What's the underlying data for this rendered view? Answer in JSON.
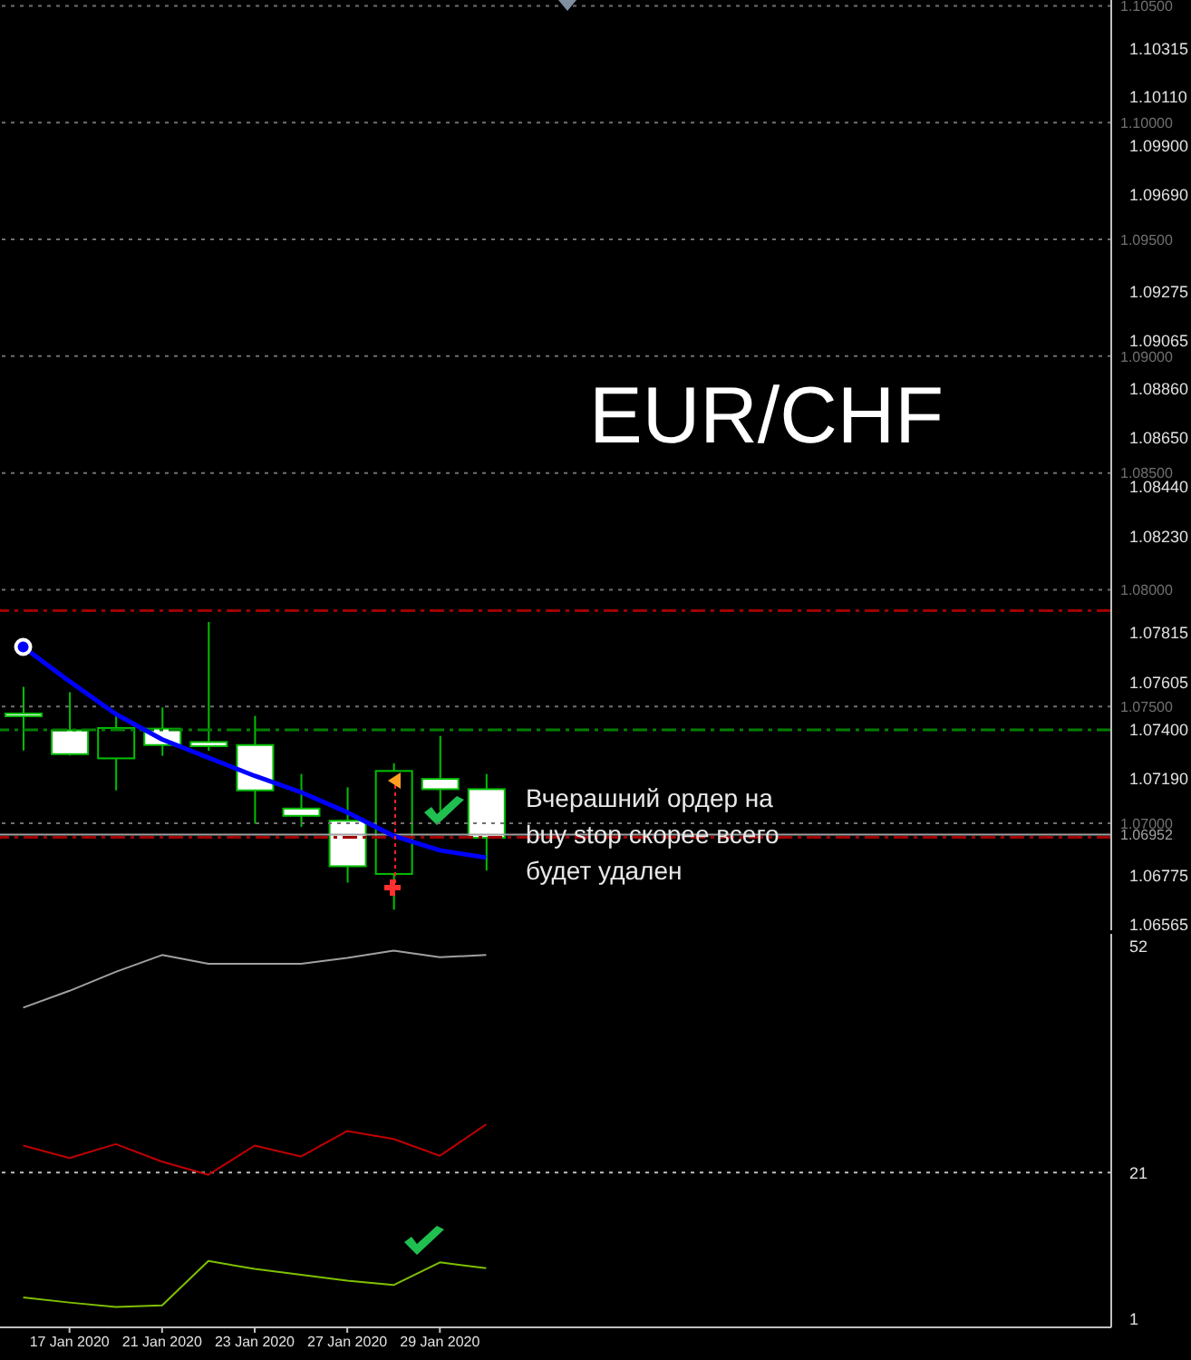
{
  "chart_data": [
    {
      "type": "candlestick",
      "title": "EUR/CHF",
      "categories": [
        null,
        null,
        null,
        null,
        null,
        null,
        null,
        null,
        null,
        null,
        null,
        null,
        null,
        null,
        null,
        null,
        null,
        null,
        null,
        null,
        null,
        null,
        null,
        null
      ],
      "color": "#00c000",
      "ohlc": [
        [
          1.0747,
          1.07584,
          1.07312,
          1.07465
        ],
        [
          1.07398,
          1.07561,
          1.0729,
          1.07296
        ],
        [
          1.07278,
          1.07478,
          1.07141,
          1.07408
        ],
        [
          1.07405,
          1.07496,
          1.07289,
          1.07335
        ],
        [
          1.07348,
          1.07862,
          1.0731,
          1.0733
        ],
        [
          1.07335,
          1.0746,
          1.06998,
          1.07141
        ],
        [
          1.07063,
          1.07211,
          1.06985,
          1.07032
        ],
        [
          1.07011,
          1.07154,
          1.06746,
          1.06816
        ],
        [
          1.06783,
          1.07257,
          1.0663,
          1.07224
        ],
        [
          1.0719,
          1.07374,
          1.0705,
          1.07146
        ],
        [
          1.07146,
          1.07211,
          1.06798,
          1.06938
        ],
        null,
        null,
        null,
        null,
        null,
        null,
        null,
        null,
        null,
        null,
        null,
        null,
        null
      ],
      "series": [
        {
          "type": "line",
          "color": "#0000ff",
          "values": [
            1.07755,
            1.07608,
            1.07468,
            1.07359,
            1.07281,
            1.07203,
            1.07133,
            1.07047,
            1.06946,
            1.06884,
            1.06853,
            null,
            null,
            null,
            null,
            null,
            null,
            null,
            null,
            null,
            null,
            null,
            null,
            null
          ]
        }
      ],
      "ylim": [
        1.06542,
        1.10525
      ],
      "yticks": [
        1.10315,
        {
          "value": 1.1011,
          "label": "1.10110"
        },
        {
          "value": 1.099,
          "label": "1.09900"
        },
        {
          "value": 1.0969,
          "label": "1.09690"
        },
        1.09275,
        1.09065,
        {
          "value": 1.0886,
          "label": "1.08860"
        },
        {
          "value": 1.0865,
          "label": "1.08650"
        },
        {
          "value": 1.0844,
          "label": "1.08440"
        },
        {
          "value": 1.0823,
          "label": "1.08230"
        },
        1.07815,
        1.07605,
        {
          "value": 1.074,
          "label": "1.07400"
        },
        {
          "value": 1.0719,
          "label": "1.07190"
        },
        1.06775,
        1.06565
      ],
      "tick_labels": "y",
      "ref_lines": [
        {
          "axis": "y",
          "value": 1.105,
          "label": "1.10500",
          "color": "#707070",
          "line_style": "dotted"
        },
        {
          "axis": "y",
          "value": 1.1,
          "label": "1.10000",
          "color": "#707070",
          "line_style": "dotted"
        },
        {
          "axis": "y",
          "value": 1.095,
          "label": "1.09500",
          "color": "#707070",
          "line_style": "dotted"
        },
        {
          "axis": "y",
          "value": 1.09,
          "label": "1.09000",
          "color": "#707070",
          "line_style": "dotted"
        },
        {
          "axis": "y",
          "value": 1.085,
          "label": "1.08500",
          "color": "#707070",
          "line_style": "dotted"
        },
        {
          "axis": "y",
          "value": 1.08,
          "label": "1.08000",
          "color": "#707070",
          "line_style": "dotted"
        },
        {
          "axis": "y",
          "value": 1.075,
          "label": "1.07500",
          "color": "#707070",
          "line_style": "dotted"
        },
        {
          "axis": "y",
          "value": 1.07,
          "label": "1.07000",
          "color": "#707070",
          "line_style": "dotted"
        },
        {
          "axis": "y",
          "value": 1.0791,
          "color": "#a00000",
          "line_style": "dashdot"
        },
        {
          "axis": "y",
          "value": 1.074,
          "color": "#008000",
          "line_style": "dashdot"
        },
        {
          "axis": "y",
          "value": 1.06952,
          "label": "1.06952",
          "color": "#a0a0a0",
          "line_style": "solid"
        },
        {
          "axis": "y",
          "value": 1.0694,
          "color": "#a00000",
          "line_style": "dashdot"
        }
      ],
      "annotations": [
        "Вчерашний ордер на buy stop скорее всего будет удален"
      ]
    },
    {
      "type": "line",
      "categories": [
        null,
        "17 Jan 2020",
        null,
        "21 Jan 2020",
        null,
        "23 Jan 2020",
        null,
        "27 Jan 2020",
        null,
        "29 Jan 2020",
        null,
        null,
        null,
        null,
        null,
        null,
        null,
        null,
        null,
        null,
        null,
        null,
        null,
        null
      ],
      "series": [
        {
          "color": "#a0a0a0",
          "values": [
            43.6,
            45.9,
            48.5,
            50.8,
            49.6,
            49.6,
            49.6,
            50.4,
            51.4,
            50.5,
            50.8,
            null,
            null,
            null,
            null,
            null,
            null,
            null,
            null,
            null,
            null,
            null,
            null,
            null
          ]
        },
        {
          "color": "#c00000",
          "values": [
            24.7,
            23.0,
            24.9,
            22.5,
            20.7,
            24.7,
            23.2,
            26.7,
            25.6,
            23.3,
            27.6,
            null,
            null,
            null,
            null,
            null,
            null,
            null,
            null,
            null,
            null,
            null,
            null,
            null
          ]
        },
        {
          "color": "#7fc000",
          "values": [
            3.9,
            3.2,
            2.6,
            2.8,
            8.9,
            7.8,
            7.0,
            6.2,
            5.6,
            8.7,
            7.9,
            null,
            null,
            null,
            null,
            null,
            null,
            null,
            null,
            null,
            null,
            null,
            null,
            null
          ]
        }
      ],
      "ylim": [
        -0.2,
        53.7
      ],
      "yticks": [
        1,
        21,
        52
      ],
      "ref_lines": [
        {
          "axis": "y",
          "value": 21,
          "color": "#c0c0c0",
          "line_style": "dotted"
        }
      ]
    }
  ]
}
